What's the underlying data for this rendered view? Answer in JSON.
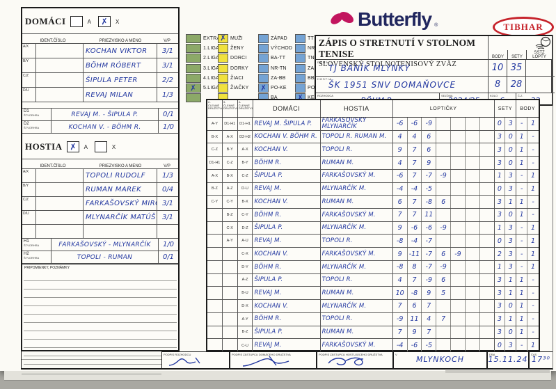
{
  "meta": {
    "x_glyph": "✗",
    "ink_color": "#2237a0",
    "green": "#8ca968",
    "yellow": "#f0e13e",
    "blue": "#74a3d4"
  },
  "logos": {
    "butterfly": "Butterfly",
    "butterfly_r": "®",
    "tibhar": "TIBHAR"
  },
  "header": {
    "title": "ZÁPIS O STRETNUTÍ V STOLNOM TENISE",
    "subtitle": "SLOVENSKÝ STOLNOTENISOVÝ ZVÄZ",
    "col_body": "BODY",
    "col_sety": "SETY",
    "col_sstz": "SSTZ",
    "col_lopty": "LOPTY",
    "domaci_label": "DOMÁCI",
    "domaci_value": "TJ BANÍK MLYNKY",
    "domaci_body": "10",
    "domaci_sety": "35",
    "hostia_label": "HOSTIA",
    "hostia_value": "ŠK 1951 SNV DOMAŇOVCE",
    "hostia_body": "8",
    "hostia_sety": "28",
    "rozhodca_label": "ROZHODCA",
    "rozhodca_value": "BÖHM R.",
    "sezona_label": "SEZÓNA",
    "sezona_value": "2024/25",
    "kolo_label": "KOLO",
    "kolo_value": "6",
    "cz_label": "Č.Z.",
    "cz_value": "32"
  },
  "leagues": {
    "green": [
      {
        "label": "EXTRA",
        "checked": false
      },
      {
        "label": "1.LIGA",
        "checked": false
      },
      {
        "label": "2.LIGA",
        "checked": false
      },
      {
        "label": "3.LIGA",
        "checked": false
      },
      {
        "label": "4.LIGA",
        "checked": false
      },
      {
        "label": "5.LIGA",
        "checked": true
      },
      {
        "label": "",
        "checked": false
      }
    ],
    "yellow": [
      {
        "label": "MUŽI",
        "checked": true
      },
      {
        "label": "ŽENY",
        "checked": false
      },
      {
        "label": "DORCI",
        "checked": false
      },
      {
        "label": "DORKY",
        "checked": false
      },
      {
        "label": "ŽIACI",
        "checked": false
      },
      {
        "label": "ŽIAČKY",
        "checked": false
      },
      {
        "label": "",
        "checked": false
      }
    ],
    "blue1": [
      {
        "label": "ZÁPAD",
        "checked": false
      },
      {
        "label": "VÝCHOD",
        "checked": false
      },
      {
        "label": "BA-TT",
        "checked": false
      },
      {
        "label": "NR-TN",
        "checked": false
      },
      {
        "label": "ZA-BB",
        "checked": false
      },
      {
        "label": "PO-KE",
        "checked": true
      },
      {
        "label": "BA",
        "checked": false
      }
    ],
    "blue2": [
      {
        "label": "TT",
        "checked": false
      },
      {
        "label": "NR",
        "checked": false
      },
      {
        "label": "TN",
        "checked": false
      },
      {
        "label": "ZA",
        "checked": false
      },
      {
        "label": "BB",
        "checked": false
      },
      {
        "label": "PO",
        "checked": false
      },
      {
        "label": "KE",
        "checked": true
      }
    ]
  },
  "domaci_panel": {
    "title": "DOMÁCI",
    "checkbox_a": {
      "label": "A",
      "checked": false
    },
    "checkbox_x": {
      "label": "X",
      "checked": true
    },
    "headers": {
      "ident": "IDENT.ČÍSLO",
      "name": "PRIEZVISKO A MENO",
      "vp": "V/P"
    },
    "players": [
      {
        "pos": "A/X",
        "name": "KOCHAN VIKTOR",
        "vp": "3/1"
      },
      {
        "pos": "B/Y",
        "name": "BÖHM RÓBERT",
        "vp": "3/1"
      },
      {
        "pos": "C/Z",
        "name": "ŠIPULA PETER",
        "vp": "2/2"
      },
      {
        "pos": "D/U",
        "name": "REVAJ MILAN",
        "vp": "1/3"
      }
    ],
    "doubles_label": "ŠTVORHRA",
    "doubles": [
      {
        "pos": "D1",
        "name": "REVAJ M. - ŠIPULA P.",
        "vp": "0/1"
      },
      {
        "pos": "D2",
        "name": "KOCHAN V. - BÖHM R.",
        "vp": "1/0"
      }
    ]
  },
  "hostia_panel": {
    "title": "HOSTIA",
    "checkbox_a": {
      "label": "A",
      "checked": true
    },
    "checkbox_x": {
      "label": "X",
      "checked": false
    },
    "headers": {
      "ident": "IDENT.ČÍSLO",
      "name": "PRIEZVISKO A MENO",
      "vp": "V/P"
    },
    "players": [
      {
        "pos": "A/X",
        "name": "TOPOLI RUDOLF",
        "vp": "1/3"
      },
      {
        "pos": "B/Y",
        "name": "RUMAN MAREK",
        "vp": "0/4"
      },
      {
        "pos": "C/Z",
        "name": "FARKAŠOVSKÝ MIRO",
        "vp": "3/1"
      },
      {
        "pos": "D/U",
        "name": "MLYNARČÍK MATÚŠ",
        "vp": "3/1"
      },
      {
        "pos": "",
        "name": "",
        "vp": ""
      }
    ],
    "doubles_label": "ŠTVORHRA",
    "doubles": [
      {
        "pos": "H1",
        "name": "FARKAŠOVSKÝ - MLYNARČÍK",
        "vp": "1/0"
      },
      {
        "pos": "H2",
        "name": "TOPOLI - RUMAN",
        "vp": "0/1"
      }
    ]
  },
  "notes": {
    "label": "PRIPOMIENKY, POZNÁMKY"
  },
  "match_table": {
    "header": {
      "domaci": "DOMÁCI",
      "hostia": "HOSTIA",
      "lopticky": "LOPTIČKY",
      "sety": "SETY",
      "body": "BODY"
    },
    "order_headers": [
      "2-ČLENNÉ DRUŽSTVÁ",
      "3-ČLENNÉ DRUŽSTVÁ",
      "4-ČLENNÉ DRUŽSTVÁ"
    ],
    "rows": [
      {
        "o1": "A-Y",
        "o2": "D1-H1",
        "o3": "D1-H1",
        "domaci": "REVAJ M. ŠIPULA P.",
        "hostia": "FARKAŠOVSKÝ MLYNARČÍK",
        "balls": [
          "-6",
          "-6",
          "-9"
        ],
        "sety": [
          "0",
          "3"
        ],
        "body": [
          "-",
          "1"
        ]
      },
      {
        "o1": "B-X",
        "o2": "A-X",
        "o3": "D2-H2",
        "domaci": "KOCHAN V. BÖHM R.",
        "hostia": "TOPOLI R. RUMAN M.",
        "balls": [
          "4",
          "4",
          "6"
        ],
        "sety": [
          "3",
          "0"
        ],
        "body": [
          "1",
          "-"
        ]
      },
      {
        "o1": "C-Z",
        "o2": "B-Y",
        "o3": "A-X",
        "domaci": "KOCHAN V.",
        "hostia": "TOPOLI R.",
        "balls": [
          "9",
          "7",
          "6"
        ],
        "sety": [
          "3",
          "0"
        ],
        "body": [
          "1",
          "-"
        ]
      },
      {
        "o1": "D1-H1",
        "o2": "C-Z",
        "o3": "B-Y",
        "domaci": "BÖHM R.",
        "hostia": "RUMAN M.",
        "balls": [
          "4",
          "7",
          "9"
        ],
        "sety": [
          "3",
          "0"
        ],
        "body": [
          "1",
          "-"
        ]
      },
      {
        "o1": "A-X",
        "o2": "B-X",
        "o3": "C-Z",
        "domaci": "ŠIPULA P.",
        "hostia": "FARKAŠOVSKÝ M.",
        "balls": [
          "-6",
          "7",
          "-7",
          "-9"
        ],
        "sety": [
          "1",
          "3"
        ],
        "body": [
          "-",
          "1"
        ]
      },
      {
        "o1": "B-Z",
        "o2": "A-Z",
        "o3": "D-U",
        "domaci": "REVAJ M.",
        "hostia": "MLYNARČÍK M.",
        "balls": [
          "-4",
          "-4",
          "-5"
        ],
        "sety": [
          "0",
          "3"
        ],
        "body": [
          "-",
          "1"
        ]
      },
      {
        "o1": "C-Y",
        "o2": "C-Y",
        "o3": "B-X",
        "domaci": "KOCHAN V.",
        "hostia": "RUMAN M.",
        "balls": [
          "6",
          "7",
          "-8",
          "6"
        ],
        "sety": [
          "3",
          "1"
        ],
        "body": [
          "1",
          "-"
        ]
      },
      {
        "o1": "",
        "o2": "B-Z",
        "o3": "C-Y",
        "domaci": "BÖHM R.",
        "hostia": "FARKAŠOVSKÝ M.",
        "balls": [
          "7",
          "7",
          "11"
        ],
        "sety": [
          "3",
          "0"
        ],
        "body": [
          "1",
          "-"
        ]
      },
      {
        "o1": "",
        "o2": "C-X",
        "o3": "D-Z",
        "domaci": "ŠIPULA P.",
        "hostia": "MLYNARČÍK M.",
        "balls": [
          "9",
          "-6",
          "-6",
          "-9"
        ],
        "sety": [
          "1",
          "3"
        ],
        "body": [
          "-",
          "1"
        ]
      },
      {
        "o1": "",
        "o2": "A-Y",
        "o3": "A-U",
        "domaci": "REVAJ M.",
        "hostia": "TOPOLI R.",
        "balls": [
          "-8",
          "-4",
          "-7"
        ],
        "sety": [
          "0",
          "3"
        ],
        "body": [
          "-",
          "1"
        ]
      },
      {
        "o1": "",
        "o2": "",
        "o3": "C-X",
        "domaci": "KOCHAN V.",
        "hostia": "FARKAŠOVSKÝ M.",
        "balls": [
          "9",
          "-11",
          "-7",
          "6",
          "-9"
        ],
        "sety": [
          "2",
          "3"
        ],
        "body": [
          "-",
          "1"
        ]
      },
      {
        "o1": "",
        "o2": "",
        "o3": "D-Y",
        "domaci": "BÖHM R.",
        "hostia": "MLYNARČÍK M.",
        "balls": [
          "-8",
          "8",
          "-7",
          "-9"
        ],
        "sety": [
          "1",
          "3"
        ],
        "body": [
          "-",
          "1"
        ]
      },
      {
        "o1": "",
        "o2": "",
        "o3": "A-Z",
        "domaci": "ŠIPULA P.",
        "hostia": "TOPOLI R.",
        "balls": [
          "4",
          "7",
          "-9",
          "6"
        ],
        "sety": [
          "3",
          "1"
        ],
        "body": [
          "1",
          "-"
        ]
      },
      {
        "o1": "",
        "o2": "",
        "o3": "B-U",
        "domaci": "REVAJ M.",
        "hostia": "RUMAN M.",
        "balls": [
          "10",
          "-8",
          "9",
          "5"
        ],
        "sety": [
          "3",
          "1"
        ],
        "body": [
          "1",
          "-"
        ]
      },
      {
        "o1": "",
        "o2": "",
        "o3": "D-X",
        "domaci": "KOCHAN V.",
        "hostia": "MLYNARČÍK M.",
        "balls": [
          "7",
          "6",
          "7"
        ],
        "sety": [
          "3",
          "0"
        ],
        "body": [
          "1",
          "-"
        ]
      },
      {
        "o1": "",
        "o2": "",
        "o3": "A-Y",
        "domaci": "BÖHM R.",
        "hostia": "TOPOLI R.",
        "balls": [
          "-9",
          "11",
          "4",
          "7"
        ],
        "sety": [
          "3",
          "1"
        ],
        "body": [
          "1",
          "-"
        ]
      },
      {
        "o1": "",
        "o2": "",
        "o3": "B-Z",
        "domaci": "ŠIPULA P.",
        "hostia": "RUMAN M.",
        "balls": [
          "7",
          "9",
          "7"
        ],
        "sety": [
          "3",
          "0"
        ],
        "body": [
          "1",
          "-"
        ]
      },
      {
        "o1": "",
        "o2": "",
        "o3": "C-U",
        "domaci": "REVAJ M.",
        "hostia": "FARKAŠOVSKÝ M.",
        "balls": [
          "-4",
          "-6",
          "-5"
        ],
        "sety": [
          "0",
          "3"
        ],
        "body": [
          "-",
          "1"
        ]
      }
    ]
  },
  "footer": {
    "podpis_rozhodca": "PODPIS ROZHODCU",
    "podpis_domaci": "PODPIS ZÁSTUPCU DOMÁCEHO DRUŽSTVA",
    "podpis_hostia": "PODPIS ZÁSTUPCU HOSTUJÚCEHO DRUŽSTVA",
    "v_label": "V",
    "v_value": "MLYNKOCH",
    "dna_label": "DŇA",
    "dna_value": "15.11.24",
    "cas_label": "ČAS",
    "cas_value": "17³⁰"
  }
}
